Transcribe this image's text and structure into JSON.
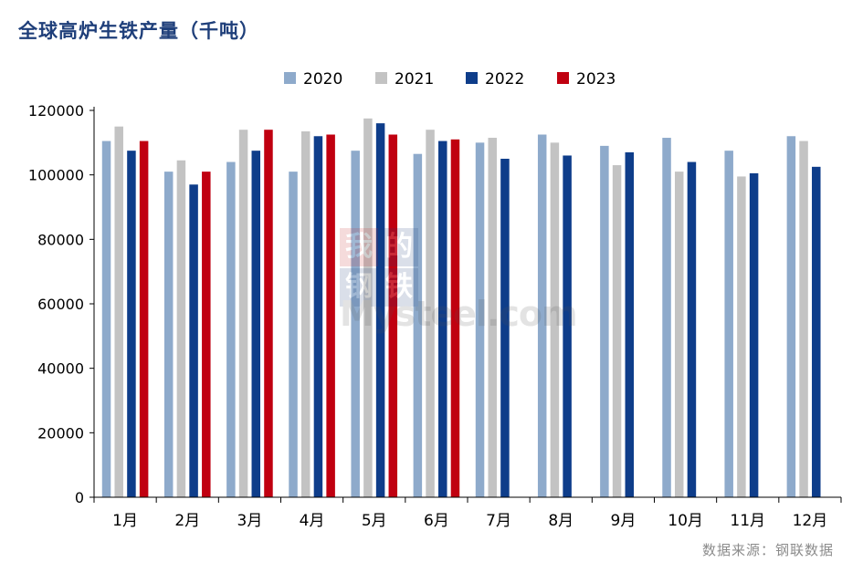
{
  "title": "全球高炉生铁产量（千吨）",
  "source": "数据来源：钢联数据",
  "watermark": {
    "chars": [
      "我",
      "的",
      "钢",
      "铁"
    ],
    "text": "Mysteel.com"
  },
  "chart_data": {
    "type": "bar",
    "categories": [
      "1月",
      "2月",
      "3月",
      "4月",
      "5月",
      "6月",
      "7月",
      "8月",
      "9月",
      "10月",
      "11月",
      "12月"
    ],
    "series": [
      {
        "name": "2020",
        "color": "#8eaacb",
        "values": [
          110500,
          101000,
          104000,
          101000,
          107500,
          106500,
          110000,
          112500,
          109000,
          111500,
          107500,
          112000
        ]
      },
      {
        "name": "2021",
        "color": "#c3c3c3",
        "values": [
          115000,
          104500,
          114000,
          113500,
          117500,
          114000,
          111500,
          110000,
          103000,
          101000,
          99500,
          110500
        ]
      },
      {
        "name": "2022",
        "color": "#0e3d8a",
        "values": [
          107500,
          97000,
          107500,
          112000,
          116000,
          110500,
          105000,
          106000,
          107000,
          104000,
          100500,
          102500
        ]
      },
      {
        "name": "2023",
        "color": "#c00010",
        "values": [
          110500,
          101000,
          114000,
          112500,
          112500,
          111000,
          null,
          null,
          null,
          null,
          null,
          null
        ]
      }
    ],
    "ylim": [
      0,
      120000
    ],
    "yticks": [
      0,
      20000,
      40000,
      60000,
      80000,
      100000,
      120000
    ],
    "legend": "top-center",
    "grid": false
  }
}
